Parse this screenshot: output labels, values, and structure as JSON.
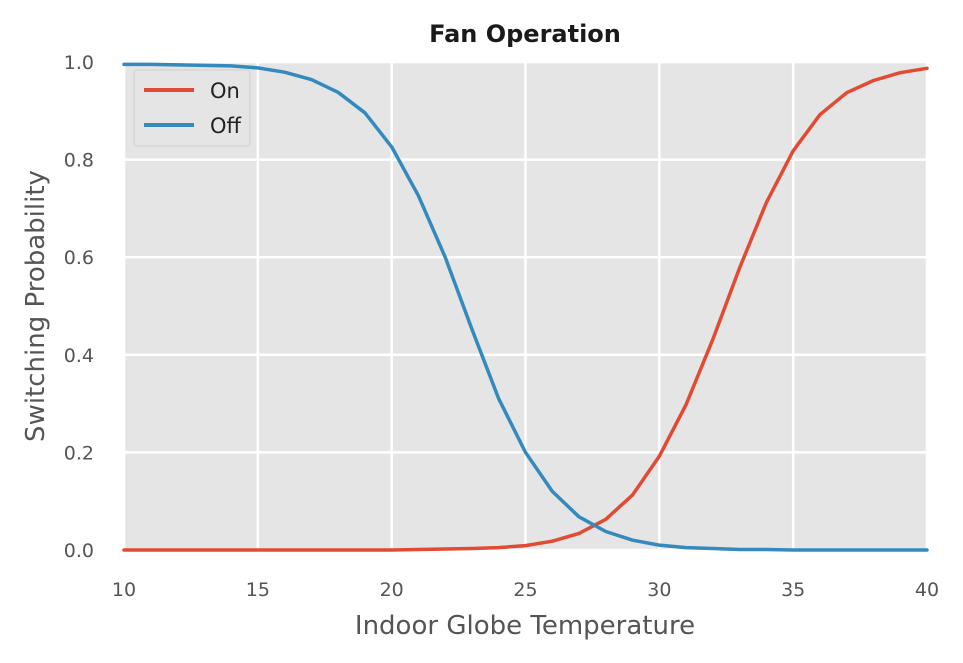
{
  "chart_data": {
    "type": "line",
    "title": "Fan Operation",
    "xlabel": "Indoor Globe Temperature",
    "ylabel": "Switching Probability",
    "xlim": [
      10,
      40
    ],
    "ylim": [
      0,
      1.0
    ],
    "x_ticks": [
      10,
      15,
      20,
      25,
      30,
      35,
      40
    ],
    "y_ticks": [
      0.0,
      0.2,
      0.4,
      0.6,
      0.8,
      1.0
    ],
    "x_tick_labels": [
      "10",
      "15",
      "20",
      "25",
      "30",
      "35",
      "40"
    ],
    "y_tick_labels": [
      "0.0",
      "0.2",
      "0.4",
      "0.6",
      "0.8",
      "1.0"
    ],
    "grid": true,
    "legend_position": "top-left",
    "x": [
      10,
      11,
      12,
      13,
      14,
      15,
      16,
      17,
      18,
      19,
      20,
      21,
      22,
      23,
      24,
      25,
      26,
      27,
      28,
      29,
      30,
      31,
      32,
      33,
      34,
      35,
      36,
      37,
      38,
      39,
      40
    ],
    "series": [
      {
        "name": "On",
        "color": "#e24a33",
        "values": [
          0.0,
          0.0,
          0.0,
          0.0,
          0.0,
          0.0,
          0.0,
          0.0,
          0.0,
          0.0,
          0.0,
          0.001,
          0.002,
          0.003,
          0.005,
          0.009,
          0.018,
          0.034,
          0.063,
          0.113,
          0.192,
          0.298,
          0.432,
          0.578,
          0.712,
          0.818,
          0.892,
          0.937,
          0.962,
          0.978,
          0.987
        ]
      },
      {
        "name": "Off",
        "color": "#348abd",
        "values": [
          0.995,
          0.995,
          0.994,
          0.993,
          0.992,
          0.988,
          0.979,
          0.964,
          0.938,
          0.896,
          0.826,
          0.726,
          0.6,
          0.452,
          0.31,
          0.2,
          0.12,
          0.068,
          0.038,
          0.02,
          0.01,
          0.005,
          0.003,
          0.001,
          0.001,
          0.0,
          0.0,
          0.0,
          0.0,
          0.0,
          0.0
        ]
      }
    ]
  },
  "colors": {
    "plot_background": "#e5e5e5",
    "grid": "#ffffff"
  }
}
